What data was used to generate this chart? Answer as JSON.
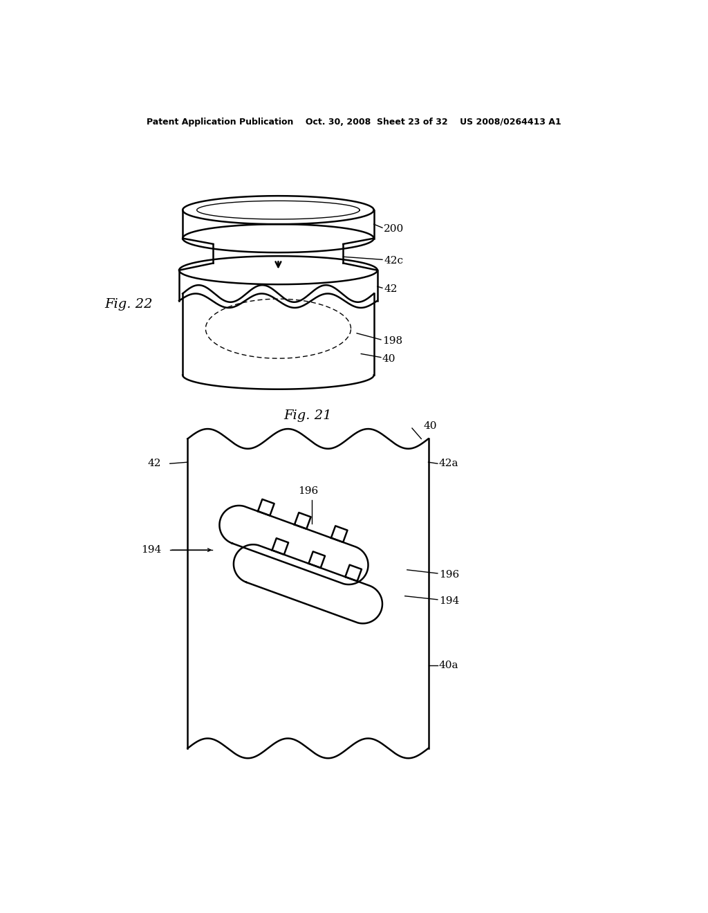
{
  "bg_color": "#ffffff",
  "line_color": "#000000",
  "header_text": "Patent Application Publication    Oct. 30, 2008  Sheet 23 of 32    US 2008/0264413 A1",
  "fig21_label": "Fig. 21",
  "fig22_label": "Fig. 22"
}
